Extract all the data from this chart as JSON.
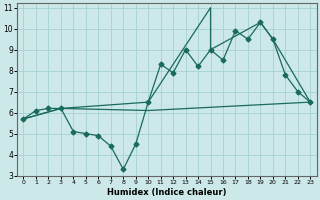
{
  "title": "",
  "xlabel": "Humidex (Indice chaleur)",
  "ylabel": "",
  "bg_color": "#cce8e8",
  "grid_color": "#aad4d4",
  "line_color": "#1a6b5a",
  "xlim": [
    -0.5,
    23.5
  ],
  "ylim": [
    3,
    11.2
  ],
  "xticks": [
    0,
    1,
    2,
    3,
    4,
    5,
    6,
    7,
    8,
    9,
    10,
    11,
    12,
    13,
    14,
    15,
    16,
    17,
    18,
    19,
    20,
    21,
    22,
    23
  ],
  "yticks": [
    3,
    4,
    5,
    6,
    7,
    8,
    9,
    10,
    11
  ],
  "line1_x": [
    0,
    1,
    2,
    3,
    4,
    5,
    6,
    7,
    8,
    9,
    10,
    11,
    12,
    13,
    14,
    15,
    16,
    17,
    18,
    19,
    20,
    21,
    22,
    23
  ],
  "line1_y": [
    5.7,
    6.1,
    6.2,
    6.2,
    5.1,
    5.0,
    4.9,
    4.4,
    3.3,
    4.5,
    6.5,
    8.3,
    7.9,
    9.0,
    8.2,
    9.0,
    8.5,
    9.9,
    9.5,
    10.3,
    9.5,
    7.8,
    7.0,
    6.5
  ],
  "line2_x": [
    0,
    3,
    10,
    15,
    15,
    19,
    20,
    23
  ],
  "line2_y": [
    5.7,
    6.2,
    6.5,
    11.0,
    9.0,
    10.3,
    9.5,
    6.5
  ],
  "line3_x": [
    0,
    3,
    10,
    23
  ],
  "line3_y": [
    5.7,
    6.2,
    6.1,
    6.5
  ],
  "marker_size": 2.5,
  "lw": 0.9
}
